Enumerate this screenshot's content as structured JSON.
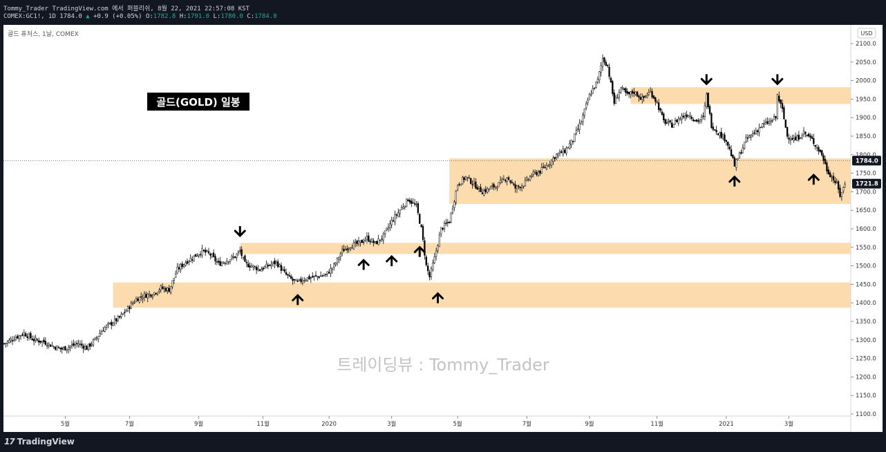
{
  "header": {
    "line1": "Tommy_Trader TradingView.com 에서 퍼블리쉬, 8월 22, 2021 22:57:08 KST",
    "symbol_line": "COMEX:GC1!, 1D 1784.0",
    "change_arrow": "▲",
    "change": "+0.9 (+0.05%)",
    "o_label": "O:",
    "o_value": "1782.8",
    "h_label": "H:",
    "h_value": "1791.0",
    "l_label": "L:",
    "l_value": "1780.0",
    "c_label": "C:",
    "c_value": "1784.0"
  },
  "legend_label": "골드 퓨처스, 1날, COMEX",
  "currency": "USD",
  "watermark": "트레이딩뷰 : Tommy_Trader",
  "brand": {
    "name": "TradingView",
    "mark": "17"
  },
  "colors": {
    "zone": "#fcdcae",
    "candle": "#000000",
    "dark_bg": "#131722",
    "price_badge": "#131722"
  },
  "chart_data": {
    "type": "candlestick",
    "title": "골드(GOLD) 일봉",
    "ylim": [
      1100,
      2100
    ],
    "y_ticks": [
      "2100.0",
      "2050.0",
      "2000.0",
      "1950.0",
      "1900.0",
      "1850.0",
      "1800.0",
      "1750.0",
      "1700.0",
      "1650.0",
      "1600.0",
      "1550.0",
      "1500.0",
      "1450.0",
      "1400.0",
      "1350.0",
      "1300.0",
      "1250.0",
      "1200.0",
      "1150.0",
      "1100.0"
    ],
    "x_ticks": [
      "5월",
      "7월",
      "9월",
      "11월",
      "2020",
      "3월",
      "5월",
      "7월",
      "9월",
      "11월",
      "2021",
      "3월"
    ],
    "price_path": [
      [
        0,
        1290
      ],
      [
        6,
        1305
      ],
      [
        12,
        1318
      ],
      [
        18,
        1300
      ],
      [
        24,
        1295
      ],
      [
        30,
        1282
      ],
      [
        35,
        1275
      ],
      [
        40,
        1283
      ],
      [
        45,
        1290
      ],
      [
        50,
        1278
      ],
      [
        55,
        1300
      ],
      [
        60,
        1330
      ],
      [
        65,
        1345
      ],
      [
        70,
        1360
      ],
      [
        75,
        1385
      ],
      [
        80,
        1410
      ],
      [
        85,
        1420
      ],
      [
        90,
        1425
      ],
      [
        95,
        1440
      ],
      [
        100,
        1435
      ],
      [
        105,
        1490
      ],
      [
        110,
        1510
      ],
      [
        115,
        1525
      ],
      [
        120,
        1540
      ],
      [
        125,
        1530
      ],
      [
        130,
        1505
      ],
      [
        135,
        1515
      ],
      [
        140,
        1525
      ],
      [
        143,
        1540
      ],
      [
        146,
        1505
      ],
      [
        150,
        1500
      ],
      [
        155,
        1490
      ],
      [
        160,
        1500
      ],
      [
        165,
        1510
      ],
      [
        170,
        1480
      ],
      [
        175,
        1460
      ],
      [
        178,
        1455
      ],
      [
        182,
        1465
      ],
      [
        188,
        1470
      ],
      [
        195,
        1475
      ],
      [
        200,
        1500
      ],
      [
        205,
        1540
      ],
      [
        210,
        1555
      ],
      [
        215,
        1560
      ],
      [
        220,
        1575
      ],
      [
        225,
        1560
      ],
      [
        230,
        1580
      ],
      [
        235,
        1620
      ],
      [
        240,
        1650
      ],
      [
        245,
        1680
      ],
      [
        250,
        1660
      ],
      [
        253,
        1600
      ],
      [
        256,
        1500
      ],
      [
        258,
        1470
      ],
      [
        261,
        1520
      ],
      [
        265,
        1600
      ],
      [
        270,
        1620
      ],
      [
        275,
        1720
      ],
      [
        280,
        1740
      ],
      [
        285,
        1720
      ],
      [
        290,
        1700
      ],
      [
        295,
        1710
      ],
      [
        300,
        1720
      ],
      [
        305,
        1740
      ],
      [
        310,
        1710
      ],
      [
        315,
        1720
      ],
      [
        320,
        1745
      ],
      [
        325,
        1755
      ],
      [
        330,
        1775
      ],
      [
        335,
        1800
      ],
      [
        340,
        1810
      ],
      [
        345,
        1840
      ],
      [
        350,
        1890
      ],
      [
        355,
        1960
      ],
      [
        360,
        2000
      ],
      [
        363,
        2060
      ],
      [
        366,
        2040
      ],
      [
        370,
        1940
      ],
      [
        374,
        1980
      ],
      [
        378,
        1960
      ],
      [
        382,
        1970
      ],
      [
        387,
        1950
      ],
      [
        392,
        1970
      ],
      [
        396,
        1940
      ],
      [
        400,
        1890
      ],
      [
        405,
        1880
      ],
      [
        410,
        1900
      ],
      [
        415,
        1910
      ],
      [
        420,
        1890
      ],
      [
        424,
        1900
      ],
      [
        426,
        1960
      ],
      [
        429,
        1880
      ],
      [
        433,
        1860
      ],
      [
        438,
        1840
      ],
      [
        441,
        1800
      ],
      [
        443,
        1770
      ],
      [
        446,
        1800
      ],
      [
        450,
        1840
      ],
      [
        455,
        1860
      ],
      [
        460,
        1880
      ],
      [
        465,
        1890
      ],
      [
        468,
        1900
      ],
      [
        469,
        1960
      ],
      [
        472,
        1920
      ],
      [
        475,
        1850
      ],
      [
        480,
        1840
      ],
      [
        485,
        1860
      ],
      [
        490,
        1840
      ],
      [
        493,
        1820
      ],
      [
        496,
        1800
      ],
      [
        499,
        1760
      ],
      [
        502,
        1740
      ],
      [
        505,
        1720
      ],
      [
        507,
        1690
      ],
      [
        510,
        1720
      ]
    ],
    "zones": [
      {
        "from_index": 143,
        "y_low": 1532,
        "y_high": 1562
      },
      {
        "from_index": 66,
        "y_low": 1387,
        "y_high": 1455
      },
      {
        "from_index": 270,
        "y_low": 1667,
        "y_high": 1790
      },
      {
        "from_index": 380,
        "y_low": 1937,
        "y_high": 1982
      },
      {
        "from_index": 257,
        "y_low": 1532,
        "y_high": 1562
      }
    ],
    "arrows": [
      {
        "index": 143,
        "price": 1555,
        "dir": "down"
      },
      {
        "index": 178,
        "price": 1450,
        "dir": "up"
      },
      {
        "index": 218,
        "price": 1545,
        "dir": "up"
      },
      {
        "index": 235,
        "price": 1555,
        "dir": "up"
      },
      {
        "index": 252,
        "price": 1580,
        "dir": "up"
      },
      {
        "index": 263,
        "price": 1455,
        "dir": "up"
      },
      {
        "index": 426,
        "price": 1965,
        "dir": "down"
      },
      {
        "index": 443,
        "price": 1770,
        "dir": "up"
      },
      {
        "index": 469,
        "price": 1965,
        "dir": "down"
      },
      {
        "index": 491,
        "price": 1775,
        "dir": "up"
      }
    ],
    "last_close": 1721.8,
    "current": 1784.0,
    "last_close_label": "1721.8",
    "current_label": "1784.0",
    "x_tick_index": [
      37,
      76,
      118,
      157,
      197,
      235,
      275,
      317,
      355,
      396,
      438,
      476
    ]
  }
}
